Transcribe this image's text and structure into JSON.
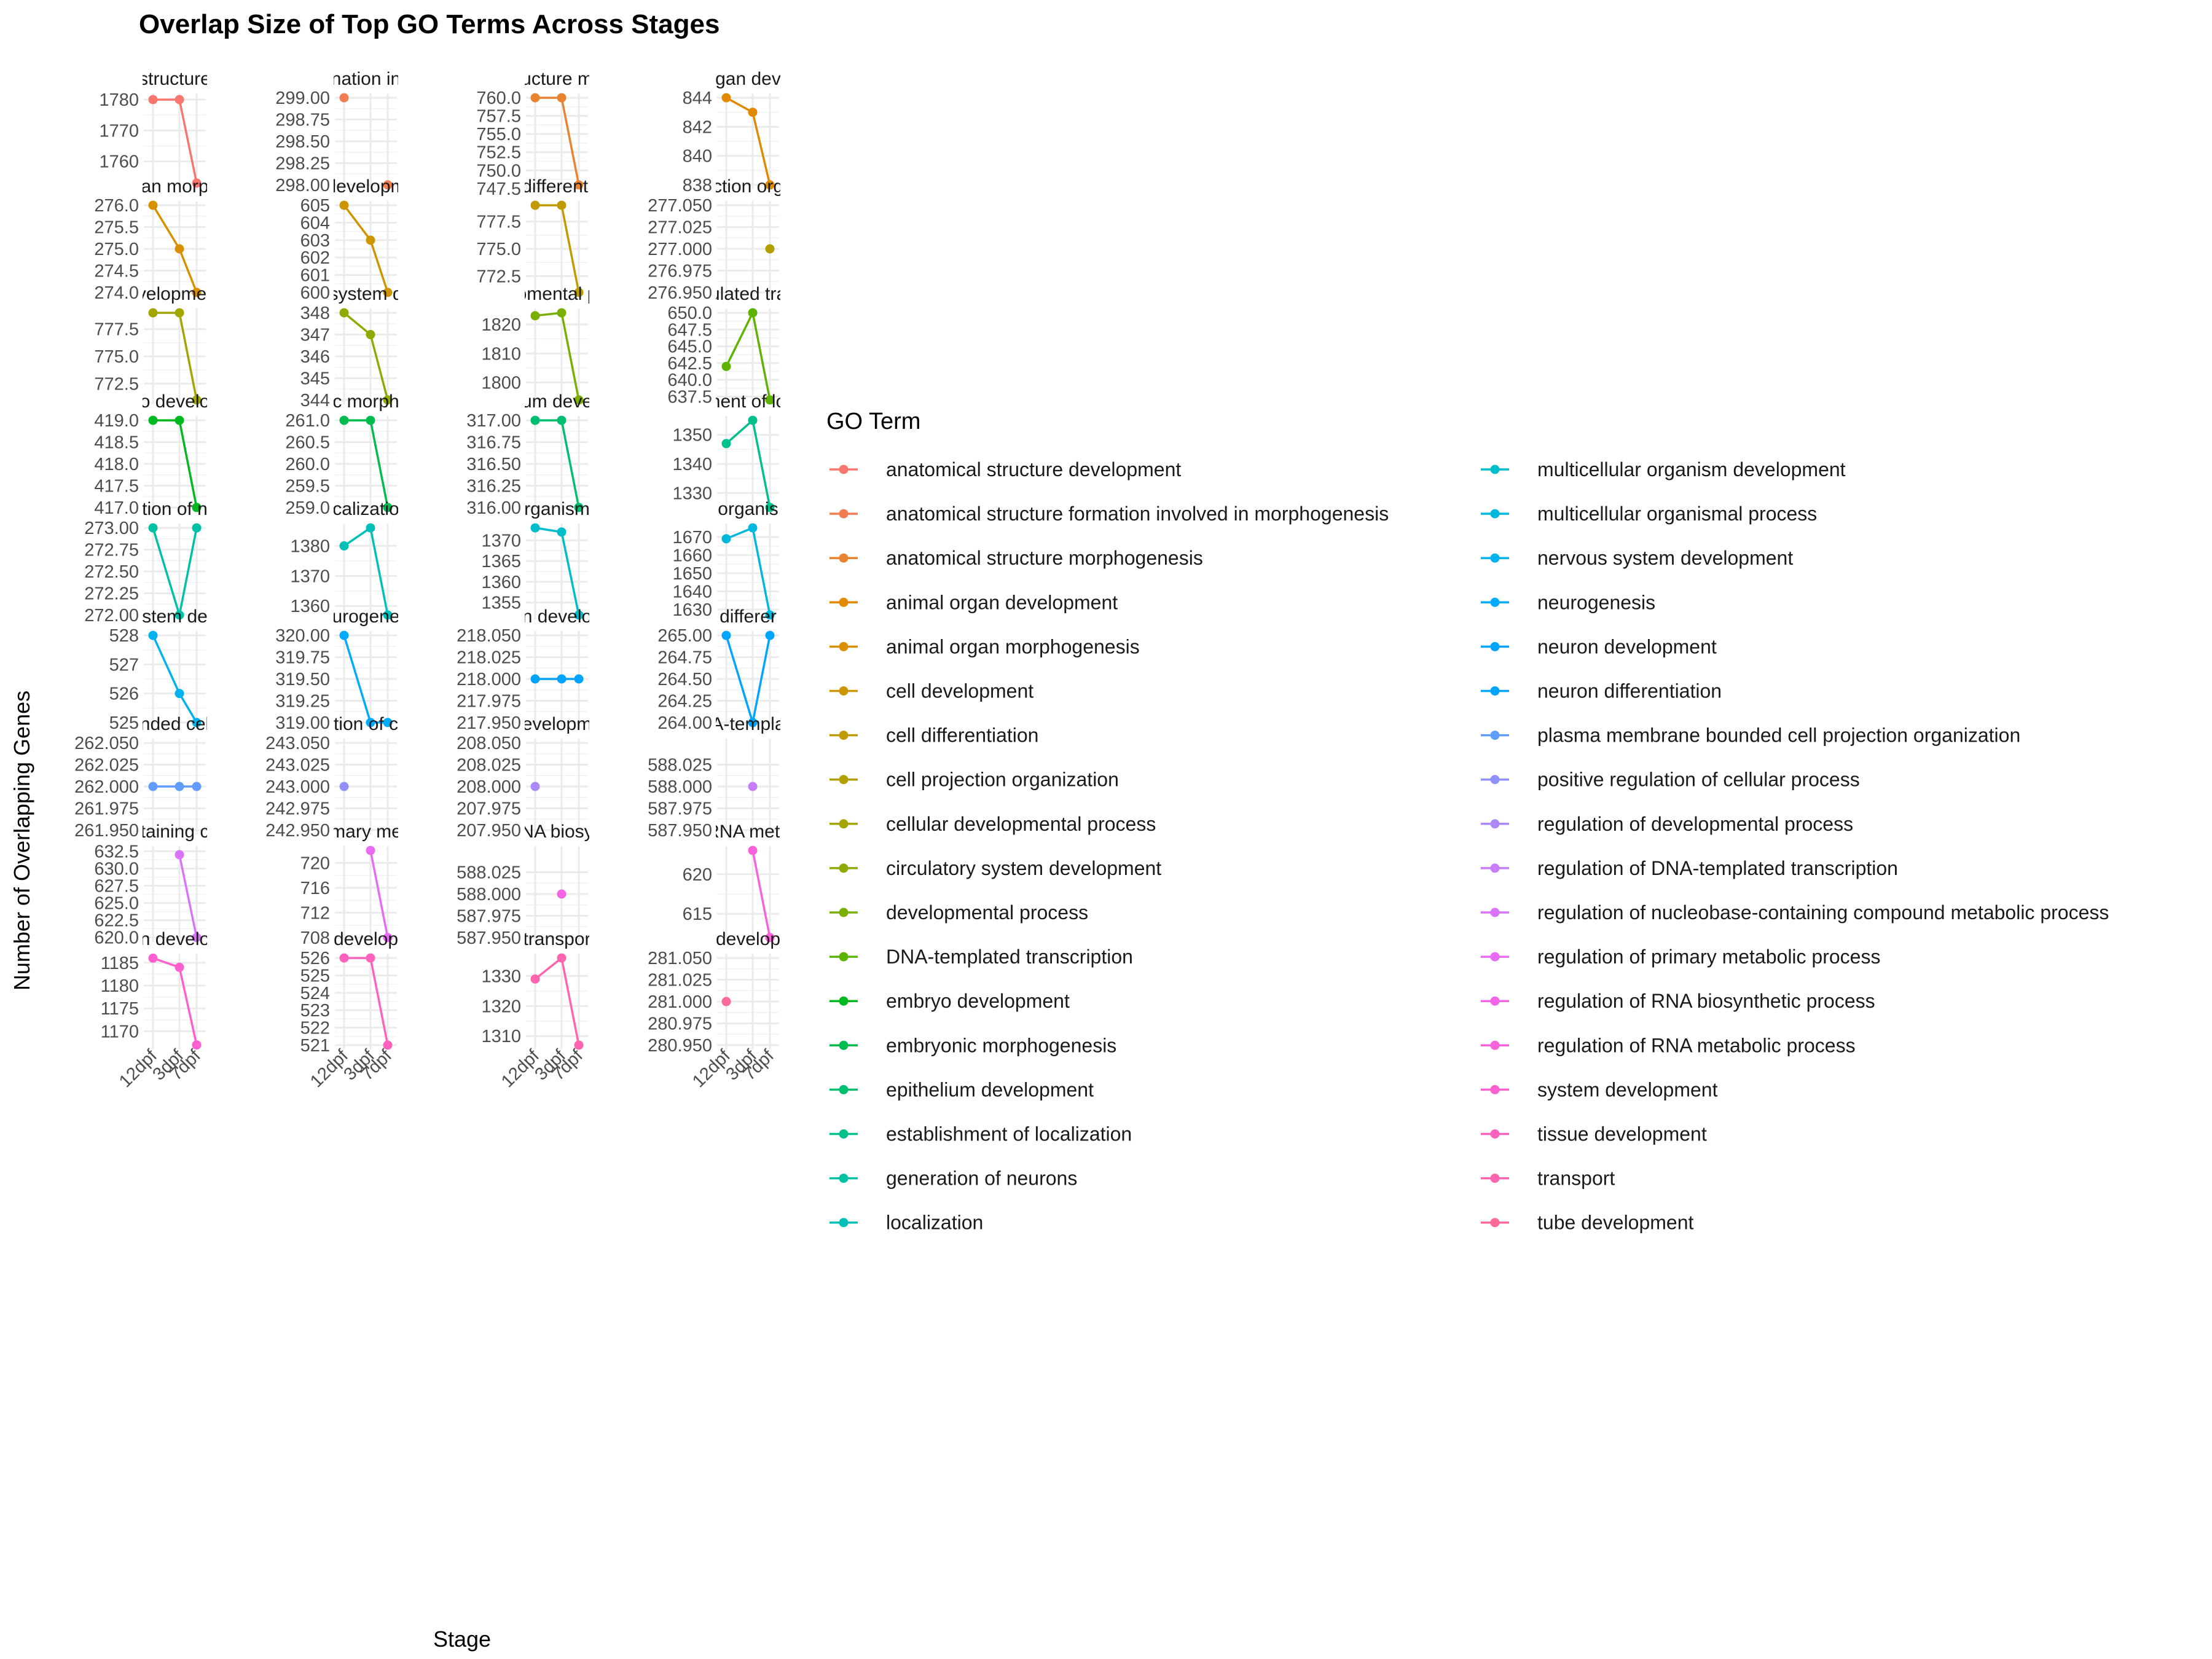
{
  "chart_data": {
    "type": "line",
    "title": "Overlap Size of Top GO Terms Across Stages",
    "xlabel": "Stage",
    "ylabel": "Number of Overlapping Genes",
    "legend_title": "GO Term",
    "legend_position": "right",
    "grid": true,
    "facet_layout": "4 columns, free y scales, strip titles clipped",
    "categories": [
      "12dpf",
      "3dpf",
      "7dpf"
    ],
    "panels": [
      {
        "strip": "structure",
        "term": "anatomical structure development",
        "color": "#F8766D",
        "values": [
          1780,
          1780,
          1753
        ],
        "yticks": [
          1760,
          1770,
          1780
        ],
        "ylim": [
          1751,
          1782
        ]
      },
      {
        "strip": "nation in",
        "term": "anatomical structure formation involved in morphogenesis",
        "color": "#F27D52",
        "values": [
          299,
          null,
          298
        ],
        "yticks": [
          "298.00",
          "298.25",
          "298.50",
          "298.75",
          "299.00"
        ],
        "ylim": [
          297.95,
          299.05
        ]
      },
      {
        "strip": "ucture m",
        "term": "anatomical structure morphogenesis",
        "color": "#EA8331",
        "values": [
          760,
          760,
          748
        ],
        "yticks": [
          "747.5",
          "750.0",
          "752.5",
          "755.0",
          "757.5",
          "760.0"
        ],
        "ylim": [
          747.4,
          760.6
        ]
      },
      {
        "strip": "gan dev",
        "term": "animal organ development",
        "color": "#E18A00",
        "values": [
          844,
          843,
          838
        ],
        "yticks": [
          838,
          840,
          842,
          844
        ],
        "ylim": [
          837.7,
          844.3
        ]
      },
      {
        "strip": "an morp",
        "term": "animal organ morphogenesis",
        "color": "#D89000",
        "values": [
          276,
          275,
          274
        ],
        "yticks": [
          "274.0",
          "274.5",
          "275.0",
          "275.5",
          "276.0"
        ],
        "ylim": [
          273.9,
          276.1
        ]
      },
      {
        "strip": "developm",
        "term": "cell development",
        "color": "#CD9600",
        "values": [
          605,
          603,
          600
        ],
        "yticks": [
          600,
          601,
          602,
          603,
          604,
          605
        ],
        "ylim": [
          599.75,
          605.25
        ]
      },
      {
        "strip": "differenti",
        "term": "cell differentiation",
        "color": "#C09B00",
        "values": [
          779,
          779,
          771
        ],
        "yticks": [
          "772.5",
          "775.0",
          "777.5"
        ],
        "ylim": [
          770.6,
          779.4
        ]
      },
      {
        "strip": "ction org",
        "term": "cell projection organization",
        "color": "#B3A000",
        "values": [
          null,
          null,
          277
        ],
        "yticks": [
          "276.950",
          "276.975",
          "277.000",
          "277.025",
          "277.050"
        ],
        "ylim": [
          276.945,
          277.055
        ]
      },
      {
        "strip": "velopmer",
        "term": "cellular developmental process",
        "color": "#A3A500",
        "values": [
          779,
          779,
          771
        ],
        "yticks": [
          "772.5",
          "775.0",
          "777.5"
        ],
        "ylim": [
          770.6,
          779.4
        ]
      },
      {
        "strip": "system d",
        "term": "circulatory system development",
        "color": "#8FAA00",
        "values": [
          348,
          347,
          344
        ],
        "yticks": [
          344,
          345,
          346,
          347,
          348
        ],
        "ylim": [
          343.8,
          348.2
        ]
      },
      {
        "strip": "omental p",
        "term": "developmental process",
        "color": "#7AAE00",
        "values": [
          1823,
          1824,
          1794
        ],
        "yticks": [
          1800,
          1810,
          1820
        ],
        "ylim": [
          1792.5,
          1825.5
        ]
      },
      {
        "strip": "ulated tra",
        "term": "DNA-templated transcription",
        "color": "#5EB300",
        "values": [
          642,
          650,
          637
        ],
        "yticks": [
          "637.5",
          "640.0",
          "642.5",
          "645.0",
          "647.5",
          "650.0"
        ],
        "ylim": [
          636.35,
          650.65
        ]
      },
      {
        "strip": "o develo",
        "term": "embryo development",
        "color": "#00B81F",
        "values": [
          419,
          419,
          417
        ],
        "yticks": [
          "417.0",
          "417.5",
          "418.0",
          "418.5",
          "419.0"
        ],
        "ylim": [
          416.9,
          419.1
        ]
      },
      {
        "strip": "c morph",
        "term": "embryonic morphogenesis",
        "color": "#00BB4E",
        "values": [
          261,
          261,
          259
        ],
        "yticks": [
          "259.0",
          "259.5",
          "260.0",
          "260.5",
          "261.0"
        ],
        "ylim": [
          258.9,
          261.1
        ]
      },
      {
        "strip": "um deve",
        "term": "epithelium development",
        "color": "#00BE70",
        "values": [
          317,
          317,
          316
        ],
        "yticks": [
          "316.00",
          "316.25",
          "316.50",
          "316.75",
          "317.00"
        ],
        "ylim": [
          315.95,
          317.05
        ]
      },
      {
        "strip": "nent of lo",
        "term": "establishment of localization",
        "color": "#00C08B",
        "values": [
          1347,
          1355,
          1325
        ],
        "yticks": [
          1330,
          1340,
          1350
        ],
        "ylim": [
          1323.5,
          1356.5
        ]
      },
      {
        "strip": "tion of n",
        "term": "generation of neurons",
        "color": "#00C1A3",
        "values": [
          273,
          272,
          273
        ],
        "yticks": [
          "272.00",
          "272.25",
          "272.50",
          "272.75",
          "273.00"
        ],
        "ylim": [
          271.95,
          273.05
        ]
      },
      {
        "strip": "calizatio",
        "term": "localization",
        "color": "#00C0B8",
        "values": [
          1380,
          1386,
          1357
        ],
        "yticks": [
          1360,
          1370,
          1380
        ],
        "ylim": [
          1355.55,
          1387.45
        ]
      },
      {
        "strip": "rganism",
        "term": "multicellular organism development",
        "color": "#00BDCC",
        "values": [
          1373,
          1372,
          1352
        ],
        "yticks": [
          1355,
          1360,
          1365,
          1370
        ],
        "ylim": [
          1350.95,
          1374.05
        ]
      },
      {
        "strip": "organis",
        "term": "multicellular organismal process",
        "color": "#00B8DE",
        "values": [
          1669,
          1675,
          1627
        ],
        "yticks": [
          1630,
          1640,
          1650,
          1660,
          1670
        ],
        "ylim": [
          1624.6,
          1677.4
        ]
      },
      {
        "strip": "stem de",
        "term": "nervous system development",
        "color": "#00B2EE",
        "values": [
          528,
          526,
          525
        ],
        "yticks": [
          525,
          526,
          527,
          528
        ],
        "ylim": [
          524.85,
          528.15
        ]
      },
      {
        "strip": "urogene",
        "term": "neurogenesis",
        "color": "#00ABFD",
        "values": [
          320,
          319,
          319
        ],
        "yticks": [
          "319.00",
          "319.25",
          "319.50",
          "319.75",
          "320.00"
        ],
        "ylim": [
          318.95,
          320.05
        ]
      },
      {
        "strip": "n develo",
        "term": "neuron development",
        "color": "#00A4FF",
        "values": [
          218,
          218,
          218
        ],
        "yticks": [
          "217.950",
          "217.975",
          "218.000",
          "218.025",
          "218.050"
        ],
        "ylim": [
          217.945,
          218.055
        ]
      },
      {
        "strip": "differer",
        "term": "neuron differentiation",
        "color": "#00A5FF",
        "values": [
          265,
          264,
          265
        ],
        "yticks": [
          "264.00",
          "264.25",
          "264.50",
          "264.75",
          "265.00"
        ],
        "ylim": [
          263.95,
          265.05
        ]
      },
      {
        "strip": "nded cel",
        "term": "plasma membrane bounded cell projection organization",
        "color": "#619CFF",
        "values": [
          262,
          262,
          262
        ],
        "yticks": [
          "261.950",
          "261.975",
          "262.000",
          "262.025",
          "262.050"
        ],
        "ylim": [
          261.945,
          262.055
        ]
      },
      {
        "strip": "tion of c",
        "term": "positive regulation of cellular process",
        "color": "#8F91FF",
        "values": [
          243,
          null,
          null
        ],
        "yticks": [
          "242.950",
          "242.975",
          "243.000",
          "243.025",
          "243.050"
        ],
        "ylim": [
          242.945,
          243.055
        ]
      },
      {
        "strip": "evelopm",
        "term": "regulation of developmental process",
        "color": "#AC88FF",
        "values": [
          208,
          null,
          null
        ],
        "yticks": [
          "207.950",
          "207.975",
          "208.000",
          "208.025",
          "208.050"
        ],
        "ylim": [
          207.945,
          208.055
        ]
      },
      {
        "strip": "A-templa",
        "term": "regulation of DNA-templated transcription",
        "color": "#C77CFF",
        "values": [
          null,
          588,
          null
        ],
        "yticks": [
          "587.950",
          "587.975",
          "588.000",
          "588.025"
        ],
        "ylim": [
          587.945,
          588.055
        ]
      },
      {
        "strip": "taining c",
        "term": "regulation of nucleobase-containing compound metabolic process",
        "color": "#D973FC",
        "values": [
          null,
          632,
          620
        ],
        "yticks": [
          "620.0",
          "622.5",
          "625.0",
          "627.5",
          "630.0",
          "632.5"
        ],
        "ylim": [
          619.35,
          633.25
        ]
      },
      {
        "strip": "mary me",
        "term": "regulation of primary metabolic process",
        "color": "#E76BF3",
        "values": [
          null,
          722,
          708
        ],
        "yticks": [
          708,
          712,
          716,
          720
        ],
        "ylim": [
          707.3,
          722.7
        ]
      },
      {
        "strip": "NA biosy",
        "term": "regulation of RNA biosynthetic process",
        "color": "#F265E6",
        "values": [
          null,
          588,
          null
        ],
        "yticks": [
          "587.950",
          "587.975",
          "588.000",
          "588.025"
        ],
        "ylim": [
          587.945,
          588.055
        ]
      },
      {
        "strip": "RNA meta",
        "term": "regulation of RNA metabolic process",
        "color": "#FA62DB",
        "values": [
          null,
          623,
          612
        ],
        "yticks": [
          615,
          620
        ],
        "ylim": [
          611.45,
          623.55
        ]
      },
      {
        "strip": "n develo",
        "term": "system development",
        "color": "#FE61CF",
        "values": [
          1186,
          1184,
          1167
        ],
        "yticks": [
          1170,
          1175,
          1180,
          1185
        ],
        "ylim": [
          1166,
          1187
        ]
      },
      {
        "strip": "develop",
        "term": "tissue development",
        "color": "#FF62BC",
        "values": [
          526,
          526,
          521
        ],
        "yticks": [
          521,
          522,
          523,
          524,
          525,
          526
        ],
        "ylim": [
          520.75,
          526.25
        ]
      },
      {
        "strip": "transpor",
        "term": "transport",
        "color": "#FF65AE",
        "values": [
          1329,
          1336,
          1307
        ],
        "yticks": [
          1310,
          1320,
          1330
        ],
        "ylim": [
          1305.55,
          1337.45
        ]
      },
      {
        "strip": "develop",
        "term": "tube development",
        "color": "#FF6A98",
        "values": [
          281,
          null,
          null
        ],
        "yticks": [
          "280.950",
          "280.975",
          "281.000",
          "281.025",
          "281.050"
        ],
        "ylim": [
          280.945,
          281.055
        ]
      }
    ]
  }
}
